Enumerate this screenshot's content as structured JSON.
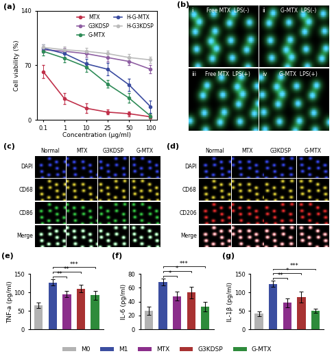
{
  "chart_data": [
    {
      "panel": "(a)",
      "type": "line",
      "x_label": "Concentration (μg/ml)",
      "y_label": "Cell viability (%)",
      "categories": [
        "0.1",
        "1",
        "10",
        "25",
        "50",
        "100"
      ],
      "ylim": [
        0,
        140
      ],
      "yticks": [
        0,
        70,
        140
      ],
      "legend": "upper right",
      "series": [
        {
          "name": "MTX",
          "color": "#c0304a",
          "marker": "o",
          "values": [
            62,
            27,
            15,
            10,
            8,
            4
          ],
          "errors": [
            8,
            7,
            6,
            3,
            3,
            2
          ]
        },
        {
          "name": "G3KDSP",
          "color": "#8e5ea2",
          "marker": "o",
          "values": [
            90,
            88,
            85,
            80,
            75,
            65
          ],
          "errors": [
            4,
            4,
            4,
            5,
            5,
            5
          ]
        },
        {
          "name": "G-MTX",
          "color": "#2e8b57",
          "marker": "o",
          "values": [
            88,
            79,
            68,
            46,
            28,
            5
          ],
          "errors": [
            5,
            5,
            6,
            5,
            6,
            3
          ]
        },
        {
          "name": "H-G-MTX",
          "color": "#3a4ba0",
          "marker": "o",
          "values": [
            92,
            85,
            72,
            65,
            45,
            17
          ],
          "errors": [
            5,
            5,
            6,
            8,
            8,
            8
          ]
        },
        {
          "name": "H-G3KDSP",
          "color": "#bbbbbb",
          "marker": "o",
          "values": [
            93,
            90,
            88,
            85,
            80,
            77
          ],
          "errors": [
            4,
            4,
            4,
            4,
            4,
            4
          ]
        }
      ]
    },
    {
      "panel": "(e)",
      "type": "bar",
      "y_label": "TNF-a (pg/ml)",
      "tick_labels": "y",
      "legend": "lower center",
      "categories": [
        "M0",
        "M1",
        "MTX",
        "G3KDSP",
        "G-MTX"
      ],
      "colors": [
        "#b3b3b3",
        "#3b4ea0",
        "#8b2e8b",
        "#a83232",
        "#2e8b3b"
      ],
      "values": [
        65,
        127,
        95,
        110,
        92
      ],
      "errors": [
        8,
        8,
        8,
        10,
        12
      ],
      "ylim": [
        0,
        150
      ],
      "yticks": [
        0,
        50,
        100,
        150
      ],
      "significance": [
        {
          "from": "M1",
          "to": "MTX",
          "label": "**"
        },
        {
          "from": "M1",
          "to": "G3KDSP",
          "label": "**"
        },
        {
          "from": "M1",
          "to": "G-MTX",
          "label": "***"
        }
      ]
    },
    {
      "panel": "(f)",
      "type": "bar",
      "y_label": "IL-6 (pg/ml)",
      "tick_labels": "y",
      "categories": [
        "M0",
        "M1",
        "MTX",
        "G3KDSP",
        "G-MTX"
      ],
      "colors": [
        "#b3b3b3",
        "#3b4ea0",
        "#8b2e8b",
        "#a83232",
        "#2e8b3b"
      ],
      "values": [
        27,
        68,
        48,
        53,
        33
      ],
      "errors": [
        6,
        5,
        6,
        8,
        7
      ],
      "ylim": [
        0,
        80
      ],
      "yticks": [
        0,
        20,
        40,
        60,
        80
      ],
      "significance": [
        {
          "from": "M1",
          "to": "MTX",
          "label": "*"
        },
        {
          "from": "M1",
          "to": "G3KDSP",
          "label": "*"
        },
        {
          "from": "M1",
          "to": "G-MTX",
          "label": "***"
        }
      ]
    },
    {
      "panel": "(g)",
      "type": "bar",
      "y_label": "IL-1β (pg/ml)",
      "tick_labels": "y",
      "categories": [
        "M0",
        "M1",
        "MTX",
        "G3KDSP",
        "G-MTX"
      ],
      "colors": [
        "#b3b3b3",
        "#3b4ea0",
        "#8b2e8b",
        "#a83232",
        "#2e8b3b"
      ],
      "values": [
        42,
        123,
        72,
        87,
        50
      ],
      "errors": [
        6,
        8,
        12,
        15,
        6
      ],
      "ylim": [
        0,
        150
      ],
      "yticks": [
        0,
        50,
        100,
        150
      ],
      "significance": [
        {
          "from": "M1",
          "to": "MTX",
          "label": "**"
        },
        {
          "from": "M1",
          "to": "G3KDSP",
          "label": "*"
        },
        {
          "from": "M1",
          "to": "G-MTX",
          "label": "***"
        }
      ]
    }
  ],
  "image_panels": [
    {
      "panel": "(b)",
      "type": "image",
      "colors": [
        "#35d24f",
        "#2b3cff"
      ],
      "cells": [
        {
          "index": "i",
          "label": "Free MTX  LPS(-)"
        },
        {
          "index": "ii",
          "label": "G-MTX  LPS(-)"
        },
        {
          "index": "iii",
          "label": "Free MTX  LPS(+)"
        },
        {
          "index": "iv",
          "label": "G-MTX  LPS(+)"
        }
      ]
    },
    {
      "panel": "(c)",
      "type": "image",
      "columns": [
        "Normal",
        "MTX",
        "G3KDSP",
        "G-MTX"
      ],
      "rows": [
        {
          "label": "DAPI",
          "color": "#3a4cff"
        },
        {
          "label": "CD68",
          "color": "#f2e23a"
        },
        {
          "label": "CD86",
          "color": "#3adf4a"
        },
        {
          "label": "Merge"
        }
      ]
    },
    {
      "panel": "(d)",
      "type": "image",
      "columns": [
        "Normal",
        "MTX",
        "G3KDSP",
        "G-MTX"
      ],
      "rows": [
        {
          "label": "DAPI",
          "color": "#3a4cff"
        },
        {
          "label": "CD68",
          "color": "#f2e23a"
        },
        {
          "label": "CD206",
          "color": "#ff3030"
        },
        {
          "label": "Merge"
        }
      ]
    }
  ]
}
